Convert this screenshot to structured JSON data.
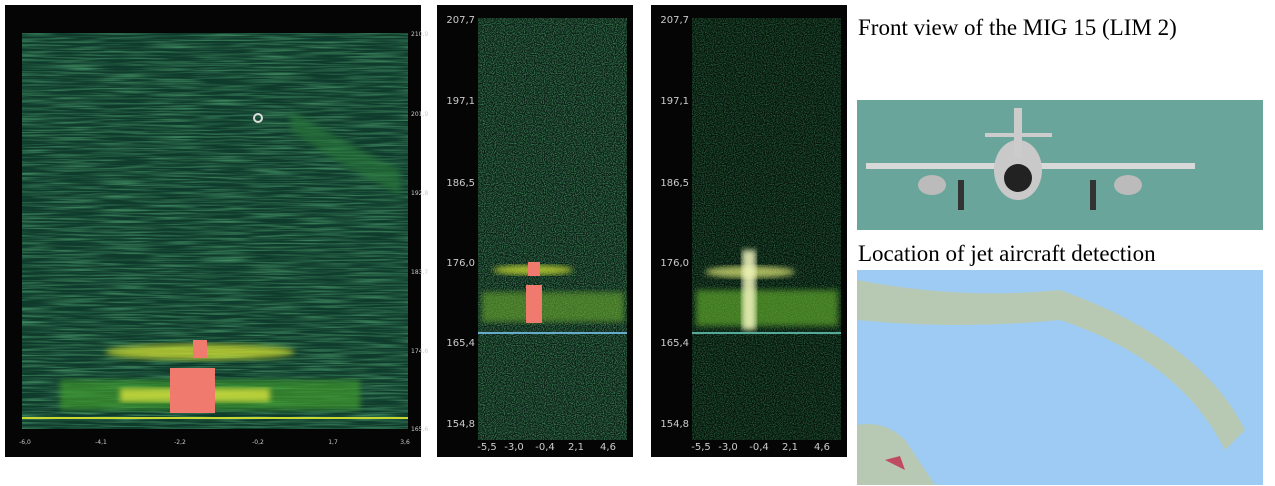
{
  "panels": [
    {
      "y_ticks": [
        "210,9",
        "201,9",
        "192,8",
        "183,7",
        "174,6",
        "165,6"
      ],
      "x_ticks": [
        "-6,0",
        "-4,1",
        "-2,2",
        "-0,2",
        "1,7",
        "3,6"
      ]
    },
    {
      "y_ticks": [
        "207,7",
        "197,1",
        "186,5",
        "176,0",
        "165,4",
        "154,8"
      ],
      "x_ticks": [
        "-5,5",
        "-3,0",
        "-0,4",
        "2,1",
        "4,6"
      ]
    },
    {
      "y_ticks": [
        "207,7",
        "197,1",
        "186,5",
        "176,0",
        "165,4",
        "154,8"
      ],
      "x_ticks": [
        "-5,5",
        "-3,0",
        "-0,4",
        "2,1",
        "4,6"
      ]
    }
  ],
  "captions": {
    "front_view": "Front view of the MIG 15 (LIM 2)",
    "location": "Location of jet aircraft detection"
  }
}
